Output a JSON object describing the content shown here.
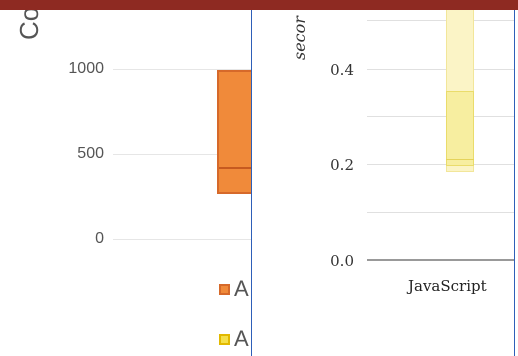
{
  "left_chart": {
    "y_title": "Co",
    "ticks": [
      "1000",
      "500",
      "0"
    ],
    "legend": [
      {
        "label": "A",
        "color": "#f08a3a",
        "border": "#d6692a"
      },
      {
        "label": "A",
        "color": "#f5e04a",
        "border": "#e2b900"
      }
    ]
  },
  "right_chart": {
    "y_title": "secor",
    "ticks": [
      "0.4",
      "0.2",
      "0.0"
    ],
    "category": "JavaScript"
  },
  "colors": {
    "top_bar": "#8e2a22",
    "divider": "#2e5fb8"
  }
}
